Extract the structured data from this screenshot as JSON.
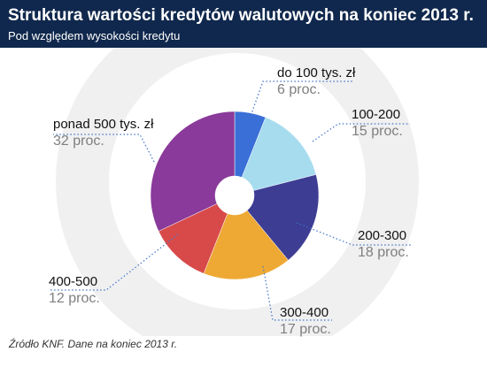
{
  "header": {
    "title": "Struktura wartości kredytów walutowych na koniec 2013 r.",
    "subtitle": "Pod względem wysokości kredytu"
  },
  "source": "Źródło KNF. Dane na koniec 2013 r.",
  "colors": {
    "header_bg": "#10284d",
    "watermark": "#f0f0f0",
    "leader": "#3f74c8"
  },
  "chart_data": {
    "type": "pie",
    "variant": "donut",
    "title": "Struktura wartości kredytów walutowych na koniec 2013 r.",
    "subtitle": "Pod względem wysokości kredytu",
    "categories": [
      "do 100 tys. zł",
      "100-200",
      "200-300",
      "300-400",
      "400-500",
      "ponad 500 tys. zł"
    ],
    "values": [
      6,
      15,
      18,
      17,
      12,
      32
    ],
    "value_labels": [
      "6 proc.",
      "15 proc.",
      "18 proc.",
      "17 proc.",
      "12 proc.",
      "32 proc."
    ],
    "unit": "proc.",
    "colors": [
      "#3a6fd8",
      "#a7dcef",
      "#3d3d94",
      "#eea935",
      "#d84a4a",
      "#8a3a9a"
    ],
    "legend": "none",
    "grid": false
  }
}
